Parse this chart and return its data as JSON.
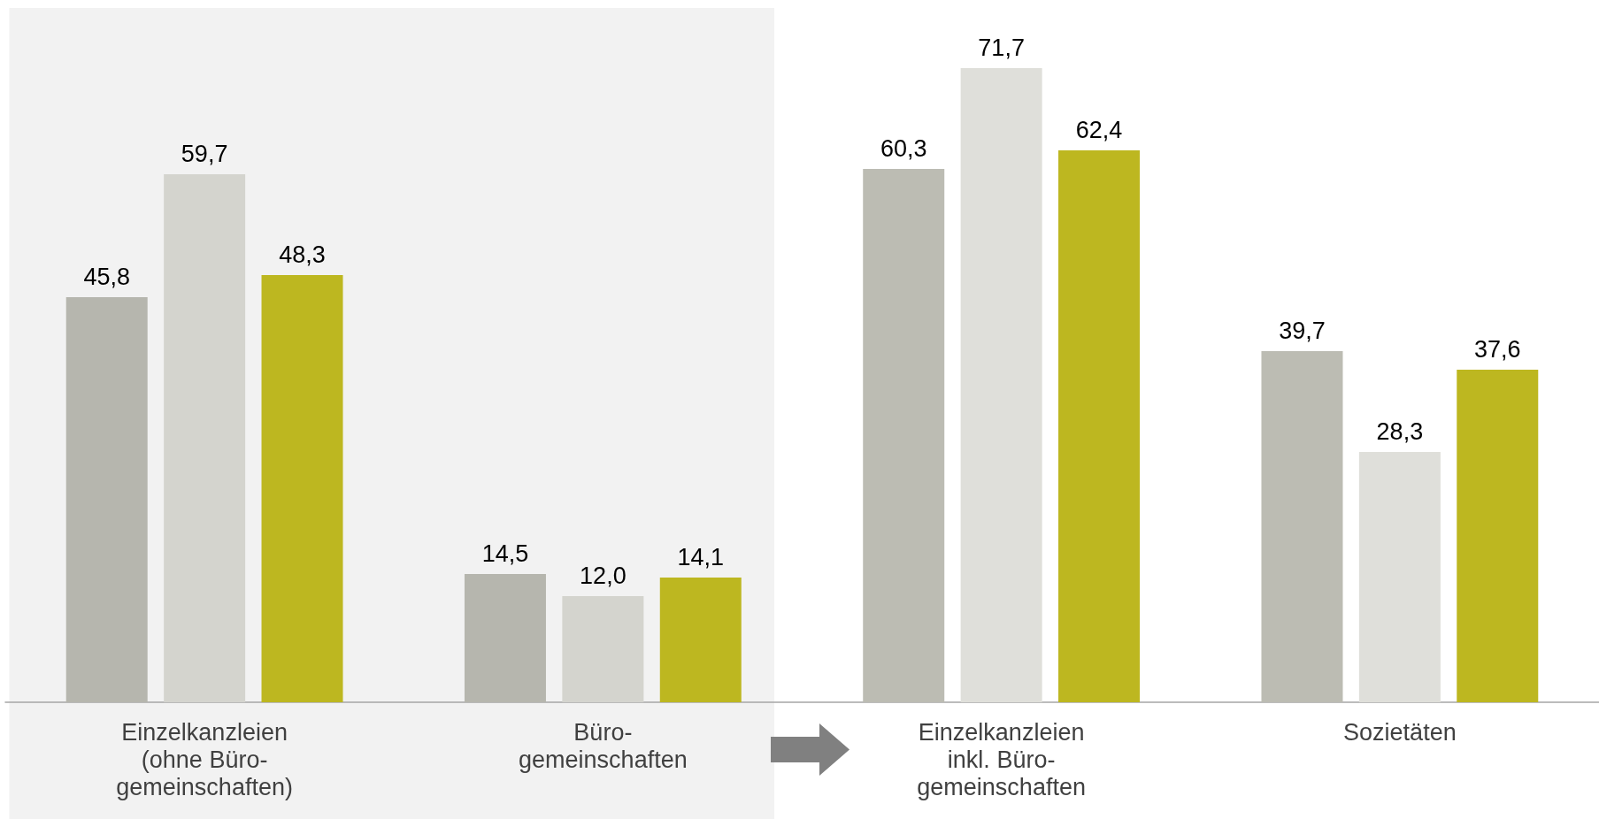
{
  "chart_data": {
    "type": "bar",
    "categories": [
      "Einzelkanzleien\n(ohne Büro-\ngemeinschaften)",
      "Büro-\ngemeinschaften",
      "Einzelkanzleien\ninkl. Büro-\ngemeinschaften",
      "Sozietäten"
    ],
    "series": [
      {
        "colors": [
          "#b6b6ae",
          "#b6b6ae",
          "#bcbcb3",
          "#bcbcb3"
        ],
        "values": [
          45.8,
          14.5,
          60.3,
          39.7
        ],
        "value_labels": [
          "45,8",
          "14,5",
          "60,3",
          "39,7"
        ]
      },
      {
        "colors": [
          "#d4d4ce",
          "#d4d4ce",
          "#dfdfda",
          "#dfdfda"
        ],
        "values": [
          59.7,
          12.0,
          71.7,
          28.3
        ],
        "value_labels": [
          "59,7",
          "12,0",
          "71,7",
          "28,3"
        ]
      },
      {
        "colors": [
          "#bdb720",
          "#bdb720",
          "#bdb720",
          "#bdb720"
        ],
        "values": [
          48.3,
          14.1,
          62.4,
          37.6
        ],
        "value_labels": [
          "48,3",
          "14,1",
          "62,4",
          "37,6"
        ]
      }
    ],
    "bands": [
      {
        "axis": "x",
        "from": "Einzelkanzleien\n(ohne Büro-\ngemeinschaften)",
        "to": "Büro-\ngemeinschaften",
        "color": "#f2f2f2"
      }
    ]
  }
}
